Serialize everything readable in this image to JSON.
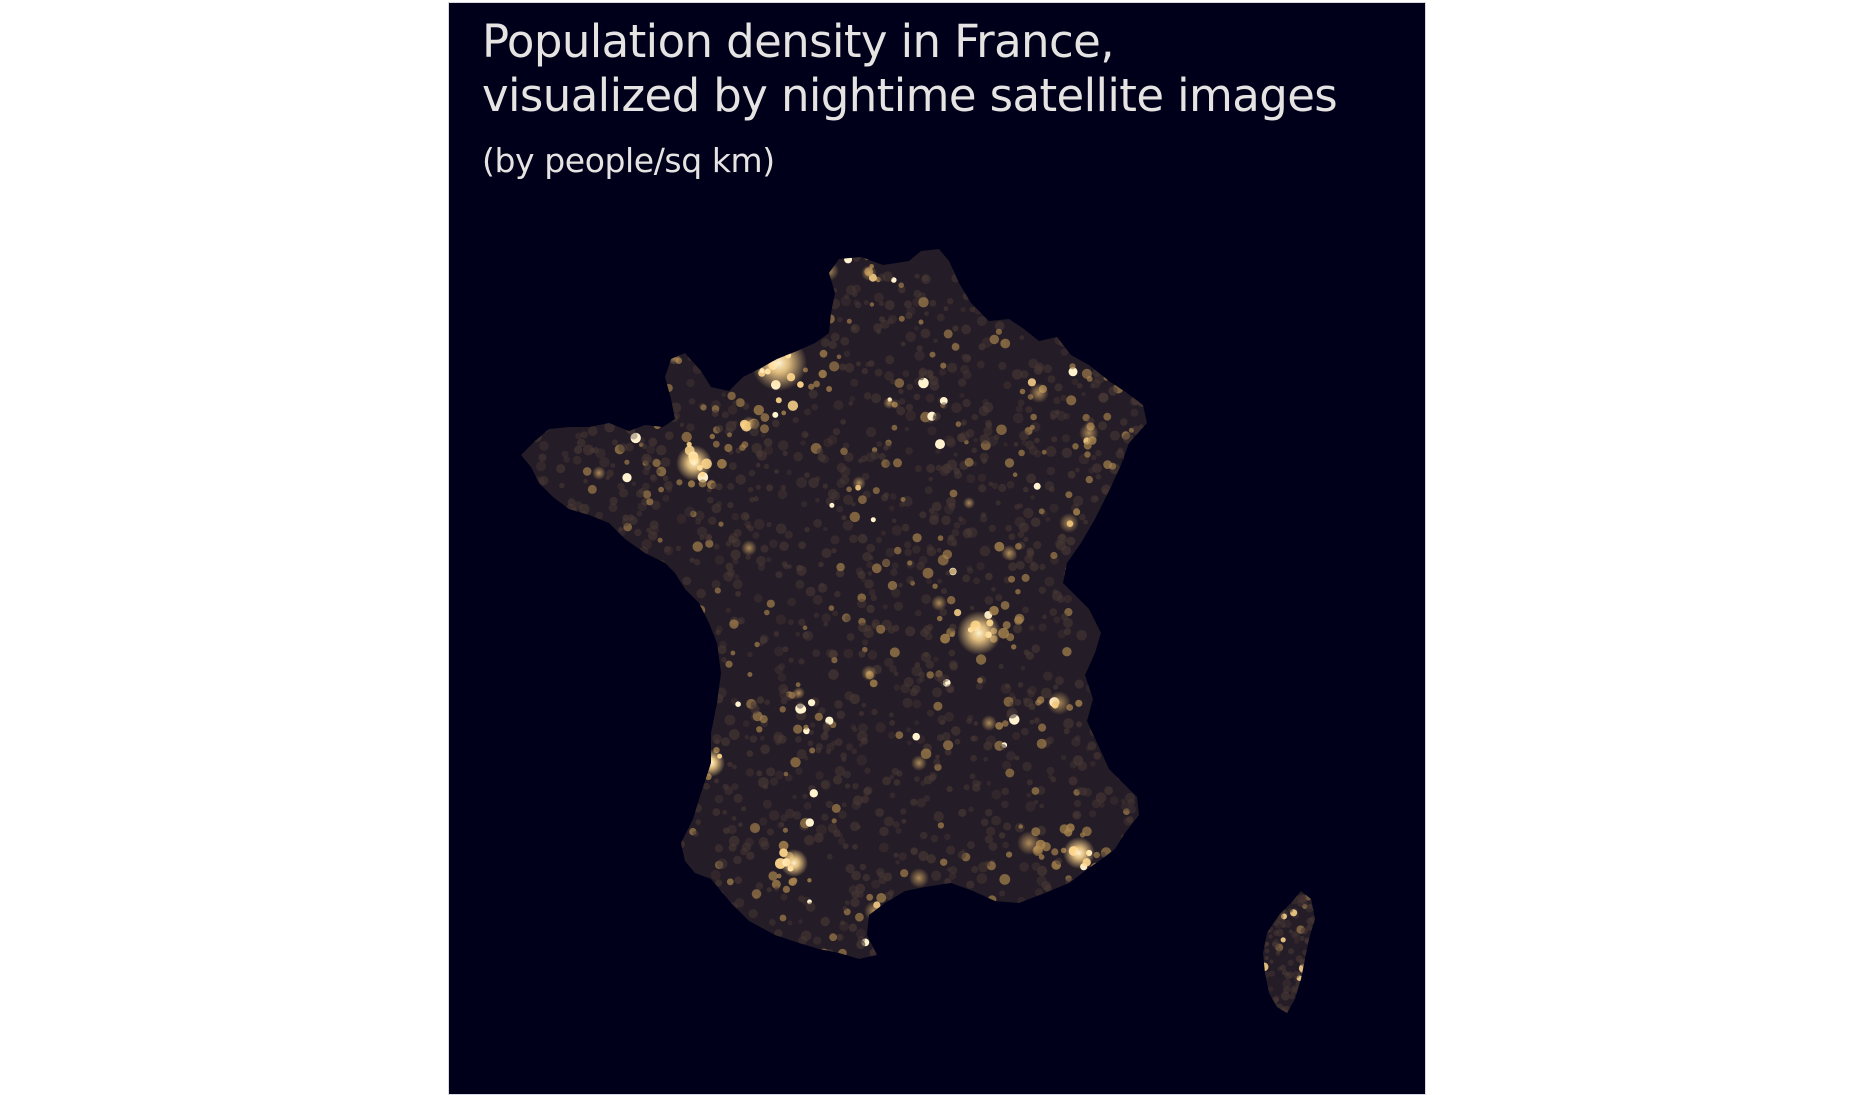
{
  "map": {
    "title_line_1": "Population density in France,",
    "title_line_2": "visualized by nightime satellite images",
    "subtitle": "(by people/sq km)",
    "colors": {
      "background": "#00001a",
      "page": "#ffffff",
      "text": "#e6e3e3",
      "land_dark": "#241c26",
      "light_dim": "#4a3a36",
      "light_mid": "#a8844e",
      "light_bright": "#ffd78c",
      "light_peak": "#fff2cf"
    }
  }
}
